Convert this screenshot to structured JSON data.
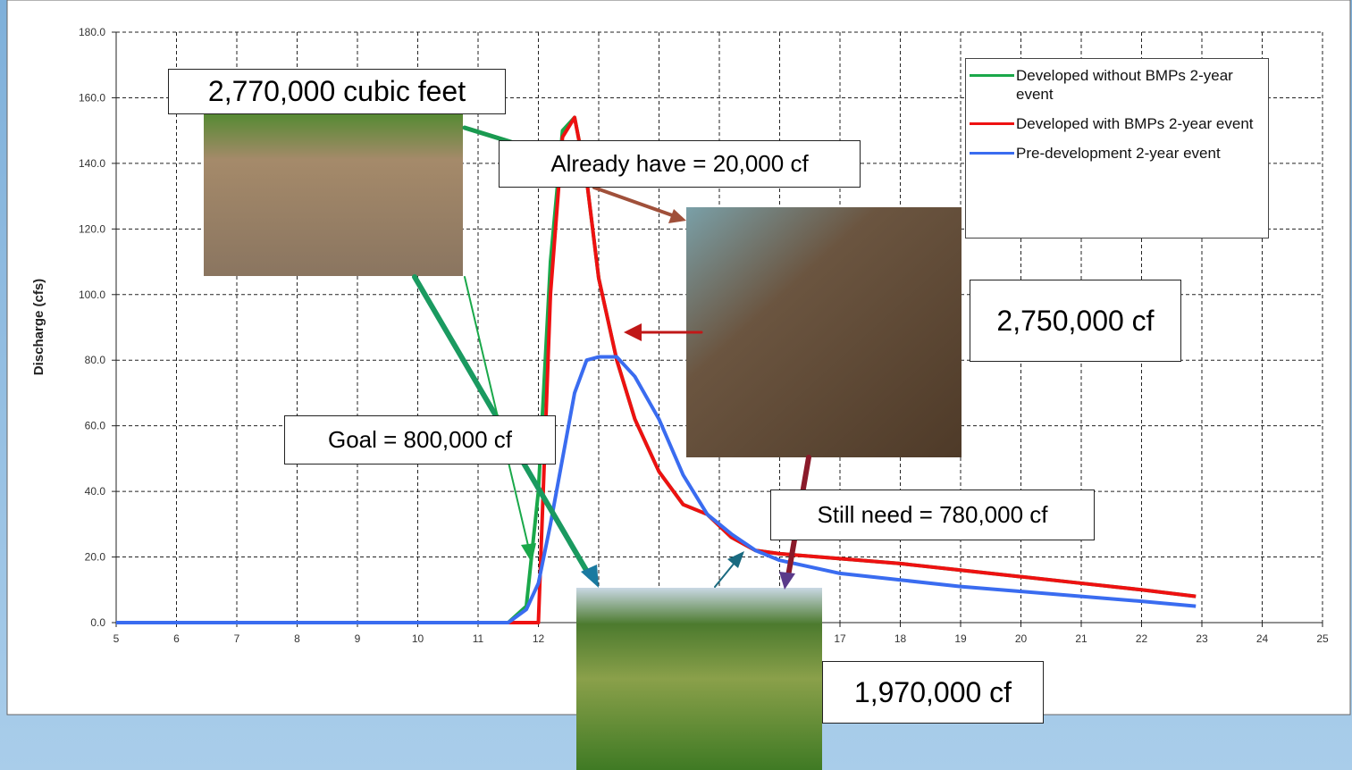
{
  "chart_data": {
    "type": "line",
    "y_label": "Discharge (cfs)",
    "x": [
      5,
      11.5,
      11.8,
      12,
      12.2,
      12.4,
      12.6,
      12.8,
      13,
      13.3,
      13.6,
      14,
      14.4,
      14.8,
      15.2,
      15.6,
      16,
      17,
      18,
      19,
      20,
      21,
      22,
      22.9
    ],
    "series": [
      {
        "name": "Developed without BMPs 2-year event",
        "color": "#1aa84a",
        "values": [
          0,
          0,
          5,
          40,
          110,
          150,
          154,
          135,
          105,
          80,
          62,
          46,
          36,
          33,
          26,
          22,
          21,
          19.5,
          18,
          16,
          14,
          12,
          10,
          8
        ]
      },
      {
        "name": "Developed with BMPs 2-year event",
        "color": "#ee1111",
        "values": [
          0,
          0,
          0,
          0,
          100,
          148,
          154,
          135,
          105,
          80,
          62,
          46,
          36,
          33,
          26,
          22,
          21,
          19.5,
          18,
          16,
          14,
          12,
          10,
          8
        ]
      },
      {
        "name": "Pre-development 2-year event",
        "color": "#3a6cf0",
        "values": [
          0,
          0,
          4,
          12,
          30,
          50,
          70,
          80,
          81,
          81,
          75,
          62,
          45,
          33,
          27,
          22,
          19,
          15,
          13,
          11,
          9.5,
          8,
          6.5,
          5
        ]
      }
    ],
    "xlim": [
      5,
      25
    ],
    "xticks": [
      5,
      6,
      7,
      8,
      9,
      10,
      11,
      12,
      13,
      14,
      15,
      16,
      17,
      18,
      19,
      20,
      21,
      22,
      23,
      24,
      25
    ],
    "ylim": [
      0,
      180
    ],
    "yticks": [
      {
        "value": 0,
        "label": "0.0"
      },
      {
        "value": 20,
        "label": "20.0"
      },
      {
        "value": 40,
        "label": "40.0"
      },
      {
        "value": 60,
        "label": "60.0"
      },
      {
        "value": 80,
        "label": "80.0"
      },
      {
        "value": 100,
        "label": "100.0"
      },
      {
        "value": 120,
        "label": "120.0"
      },
      {
        "value": 140,
        "label": "140.0"
      },
      {
        "value": 160,
        "label": "160.0"
      },
      {
        "value": 180,
        "label": "180.0"
      }
    ],
    "grid": true,
    "legend": "upper-right",
    "annotations": [
      "2,770,000 cubic feet",
      "Already have = 20,000 cf",
      "2,750,000 cf",
      "Goal = 800,000 cf",
      "Still need = 780,000 cf",
      "1,970,000 cf"
    ]
  }
}
